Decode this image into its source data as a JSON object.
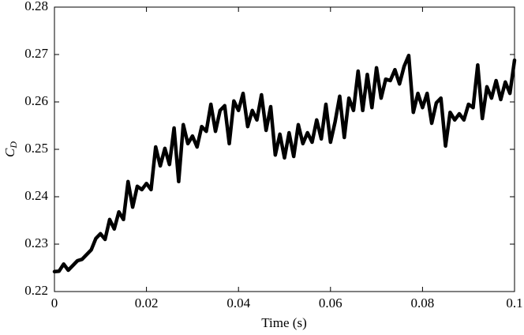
{
  "chart_data": {
    "type": "line",
    "xlabel": "Time (s)",
    "ylabel": "C",
    "ylabel_subscript": "D",
    "x": [
      0,
      0.001,
      0.002,
      0.003,
      0.004,
      0.005,
      0.006,
      0.007,
      0.008,
      0.009,
      0.01,
      0.011,
      0.012,
      0.013,
      0.014,
      0.015,
      0.016,
      0.017,
      0.018,
      0.019,
      0.02,
      0.021,
      0.022,
      0.023,
      0.024,
      0.025,
      0.026,
      0.027,
      0.028,
      0.029,
      0.03,
      0.031,
      0.032,
      0.033,
      0.034,
      0.035,
      0.036,
      0.037,
      0.038,
      0.039,
      0.04,
      0.041,
      0.042,
      0.043,
      0.044,
      0.045,
      0.046,
      0.047,
      0.048,
      0.049,
      0.05,
      0.051,
      0.052,
      0.053,
      0.054,
      0.055,
      0.056,
      0.057,
      0.058,
      0.059,
      0.06,
      0.061,
      0.062,
      0.063,
      0.064,
      0.065,
      0.066,
      0.067,
      0.068,
      0.069,
      0.07,
      0.071,
      0.072,
      0.073,
      0.074,
      0.075,
      0.076,
      0.077,
      0.078,
      0.079,
      0.08,
      0.081,
      0.082,
      0.083,
      0.084,
      0.085,
      0.086,
      0.087,
      0.088,
      0.089,
      0.09,
      0.091,
      0.092,
      0.093,
      0.094,
      0.095,
      0.096,
      0.097,
      0.098,
      0.099,
      0.1
    ],
    "series": [
      {
        "color": "#000000",
        "values": [
          0.2242,
          0.2243,
          0.2258,
          0.2245,
          0.2255,
          0.2265,
          0.2268,
          0.2278,
          0.2288,
          0.2312,
          0.2322,
          0.231,
          0.2352,
          0.2332,
          0.2368,
          0.2352,
          0.2432,
          0.2378,
          0.2422,
          0.2415,
          0.2428,
          0.2415,
          0.2505,
          0.2465,
          0.2502,
          0.2468,
          0.2545,
          0.2432,
          0.2552,
          0.2512,
          0.2528,
          0.2505,
          0.2548,
          0.2538,
          0.2595,
          0.2538,
          0.2582,
          0.2592,
          0.2512,
          0.2602,
          0.2582,
          0.2618,
          0.2548,
          0.2582,
          0.2562,
          0.2615,
          0.254,
          0.259,
          0.2488,
          0.2532,
          0.2482,
          0.2535,
          0.2485,
          0.2552,
          0.2512,
          0.2535,
          0.2515,
          0.2562,
          0.2522,
          0.2595,
          0.2515,
          0.2558,
          0.2612,
          0.2525,
          0.2608,
          0.2582,
          0.2665,
          0.2582,
          0.2658,
          0.2588,
          0.2672,
          0.2608,
          0.2648,
          0.2645,
          0.2668,
          0.2638,
          0.2675,
          0.2698,
          0.2578,
          0.2618,
          0.2588,
          0.2618,
          0.2555,
          0.2598,
          0.2608,
          0.2507,
          0.2578,
          0.2562,
          0.2575,
          0.2562,
          0.2595,
          0.2588,
          0.2678,
          0.2565,
          0.2632,
          0.2608,
          0.2645,
          0.2605,
          0.2642,
          0.2618,
          0.2688
        ]
      }
    ],
    "xlim": [
      0,
      0.1
    ],
    "xticks": [
      0,
      0.02,
      0.04,
      0.06,
      0.08,
      0.1
    ],
    "ylim": [
      0.22,
      0.28
    ],
    "yticks": [
      0.22,
      0.23,
      0.24,
      0.25,
      0.26,
      0.27,
      0.28
    ]
  }
}
